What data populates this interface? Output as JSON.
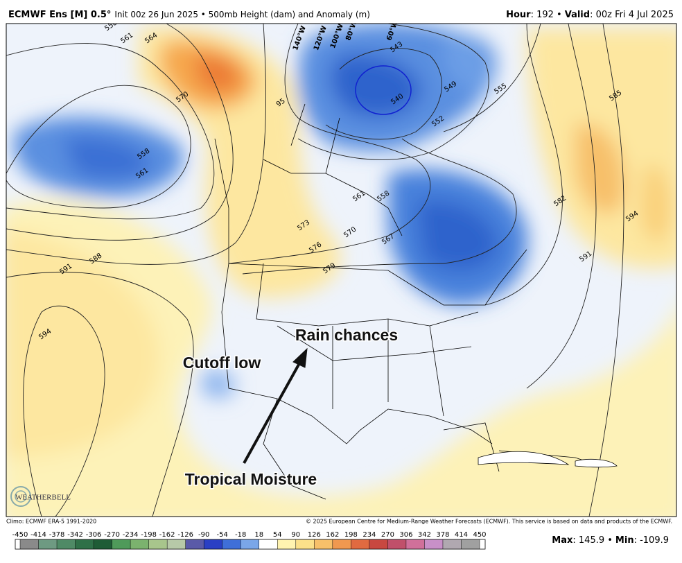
{
  "header": {
    "title_bold": "ECMWF Ens [M] 0.5°",
    "title_rest": "Init 00z 26 Jun 2025 • 500mb Height (dam) and Anomaly (m)",
    "hour_label": "Hour",
    "hour_value": ": 192 •",
    "valid_label": "Valid",
    "valid_value": ": 00z Fri 4 Jul 2025"
  },
  "map": {
    "contour_labels": [
      "558",
      "561",
      "564",
      "570",
      "558",
      "561",
      "95",
      "573",
      "570",
      "576",
      "579",
      "567",
      "561",
      "558",
      "588",
      "591",
      "594",
      "543",
      "540",
      "552",
      "549",
      "555",
      "582",
      "585",
      "594",
      "591"
    ],
    "longitude_labels": [
      "140°W",
      "120°W",
      "100°W",
      "80°W",
      "60°W"
    ],
    "annotations": [
      "Rain chances",
      "Cutoff low",
      "Tropical Moisture"
    ],
    "logo": "WEATHERBELL"
  },
  "footer": {
    "climo": "Climo: ECMWF ERA-5 1991-2020",
    "copyright": "© 2025 European Centre for Medium-Range Weather Forecasts (ECMWF). This service is based on data and products of the ECMWF."
  },
  "colorbar": {
    "ticks": [
      -450,
      -414,
      -378,
      -342,
      -306,
      -270,
      -234,
      -198,
      -162,
      -126,
      -90,
      -54,
      -18,
      18,
      54,
      90,
      126,
      162,
      198,
      234,
      270,
      306,
      342,
      378,
      414,
      450
    ],
    "colors": [
      "#8a8a8a",
      "#6e9a82",
      "#4f8a66",
      "#2f7048",
      "#1f5c36",
      "#4f9a5a",
      "#7bb26e",
      "#a8c58c",
      "#b7c9a8",
      "#5a5aa8",
      "#2a3fc4",
      "#3f6fd8",
      "#7aa6e8",
      "#ffffff",
      "#fff3b0",
      "#fbe08a",
      "#f7c06a",
      "#f09850",
      "#e06a40",
      "#c84840",
      "#c0506a",
      "#d0709a",
      "#c890c8",
      "#b0a8b0",
      "#a0a0a0"
    ],
    "max_label": "Max",
    "max_value": ": 145.9 •",
    "min_label": "Min",
    "min_value": ": -109.9"
  }
}
